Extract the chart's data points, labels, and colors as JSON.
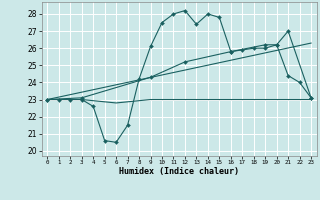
{
  "title": "",
  "xlabel": "Humidex (Indice chaleur)",
  "bg_color": "#cce8e8",
  "line_color": "#1a6060",
  "grid_color": "#ffffff",
  "xlim": [
    -0.5,
    23.5
  ],
  "ylim": [
    19.7,
    28.7
  ],
  "yticks": [
    20,
    21,
    22,
    23,
    24,
    25,
    26,
    27,
    28
  ],
  "xticks": [
    0,
    1,
    2,
    3,
    4,
    5,
    6,
    7,
    8,
    9,
    10,
    11,
    12,
    13,
    14,
    15,
    16,
    17,
    18,
    19,
    20,
    21,
    22,
    23
  ],
  "line1_x": [
    0,
    1,
    2,
    3,
    4,
    5,
    6,
    7,
    8,
    9,
    10,
    11,
    12,
    13,
    14,
    15,
    16,
    17,
    18,
    19,
    20,
    21,
    22,
    23
  ],
  "line1_y": [
    23.0,
    23.0,
    23.0,
    23.0,
    22.6,
    20.6,
    20.5,
    21.5,
    24.2,
    26.1,
    27.5,
    28.0,
    28.2,
    27.4,
    28.0,
    27.8,
    25.8,
    25.9,
    26.0,
    26.0,
    26.2,
    24.4,
    24.0,
    23.1
  ],
  "line2_x": [
    0,
    3,
    9,
    12,
    16,
    19,
    20,
    21,
    23
  ],
  "line2_y": [
    23.0,
    23.1,
    24.3,
    25.2,
    25.8,
    26.2,
    26.2,
    27.0,
    23.1
  ],
  "line3_x": [
    0,
    23
  ],
  "line3_y": [
    23.0,
    26.3
  ],
  "line4_x": [
    0,
    3,
    6,
    9,
    12,
    15,
    18,
    21,
    23
  ],
  "line4_y": [
    23.0,
    23.0,
    22.8,
    23.0,
    23.0,
    23.0,
    23.0,
    23.0,
    23.0
  ]
}
